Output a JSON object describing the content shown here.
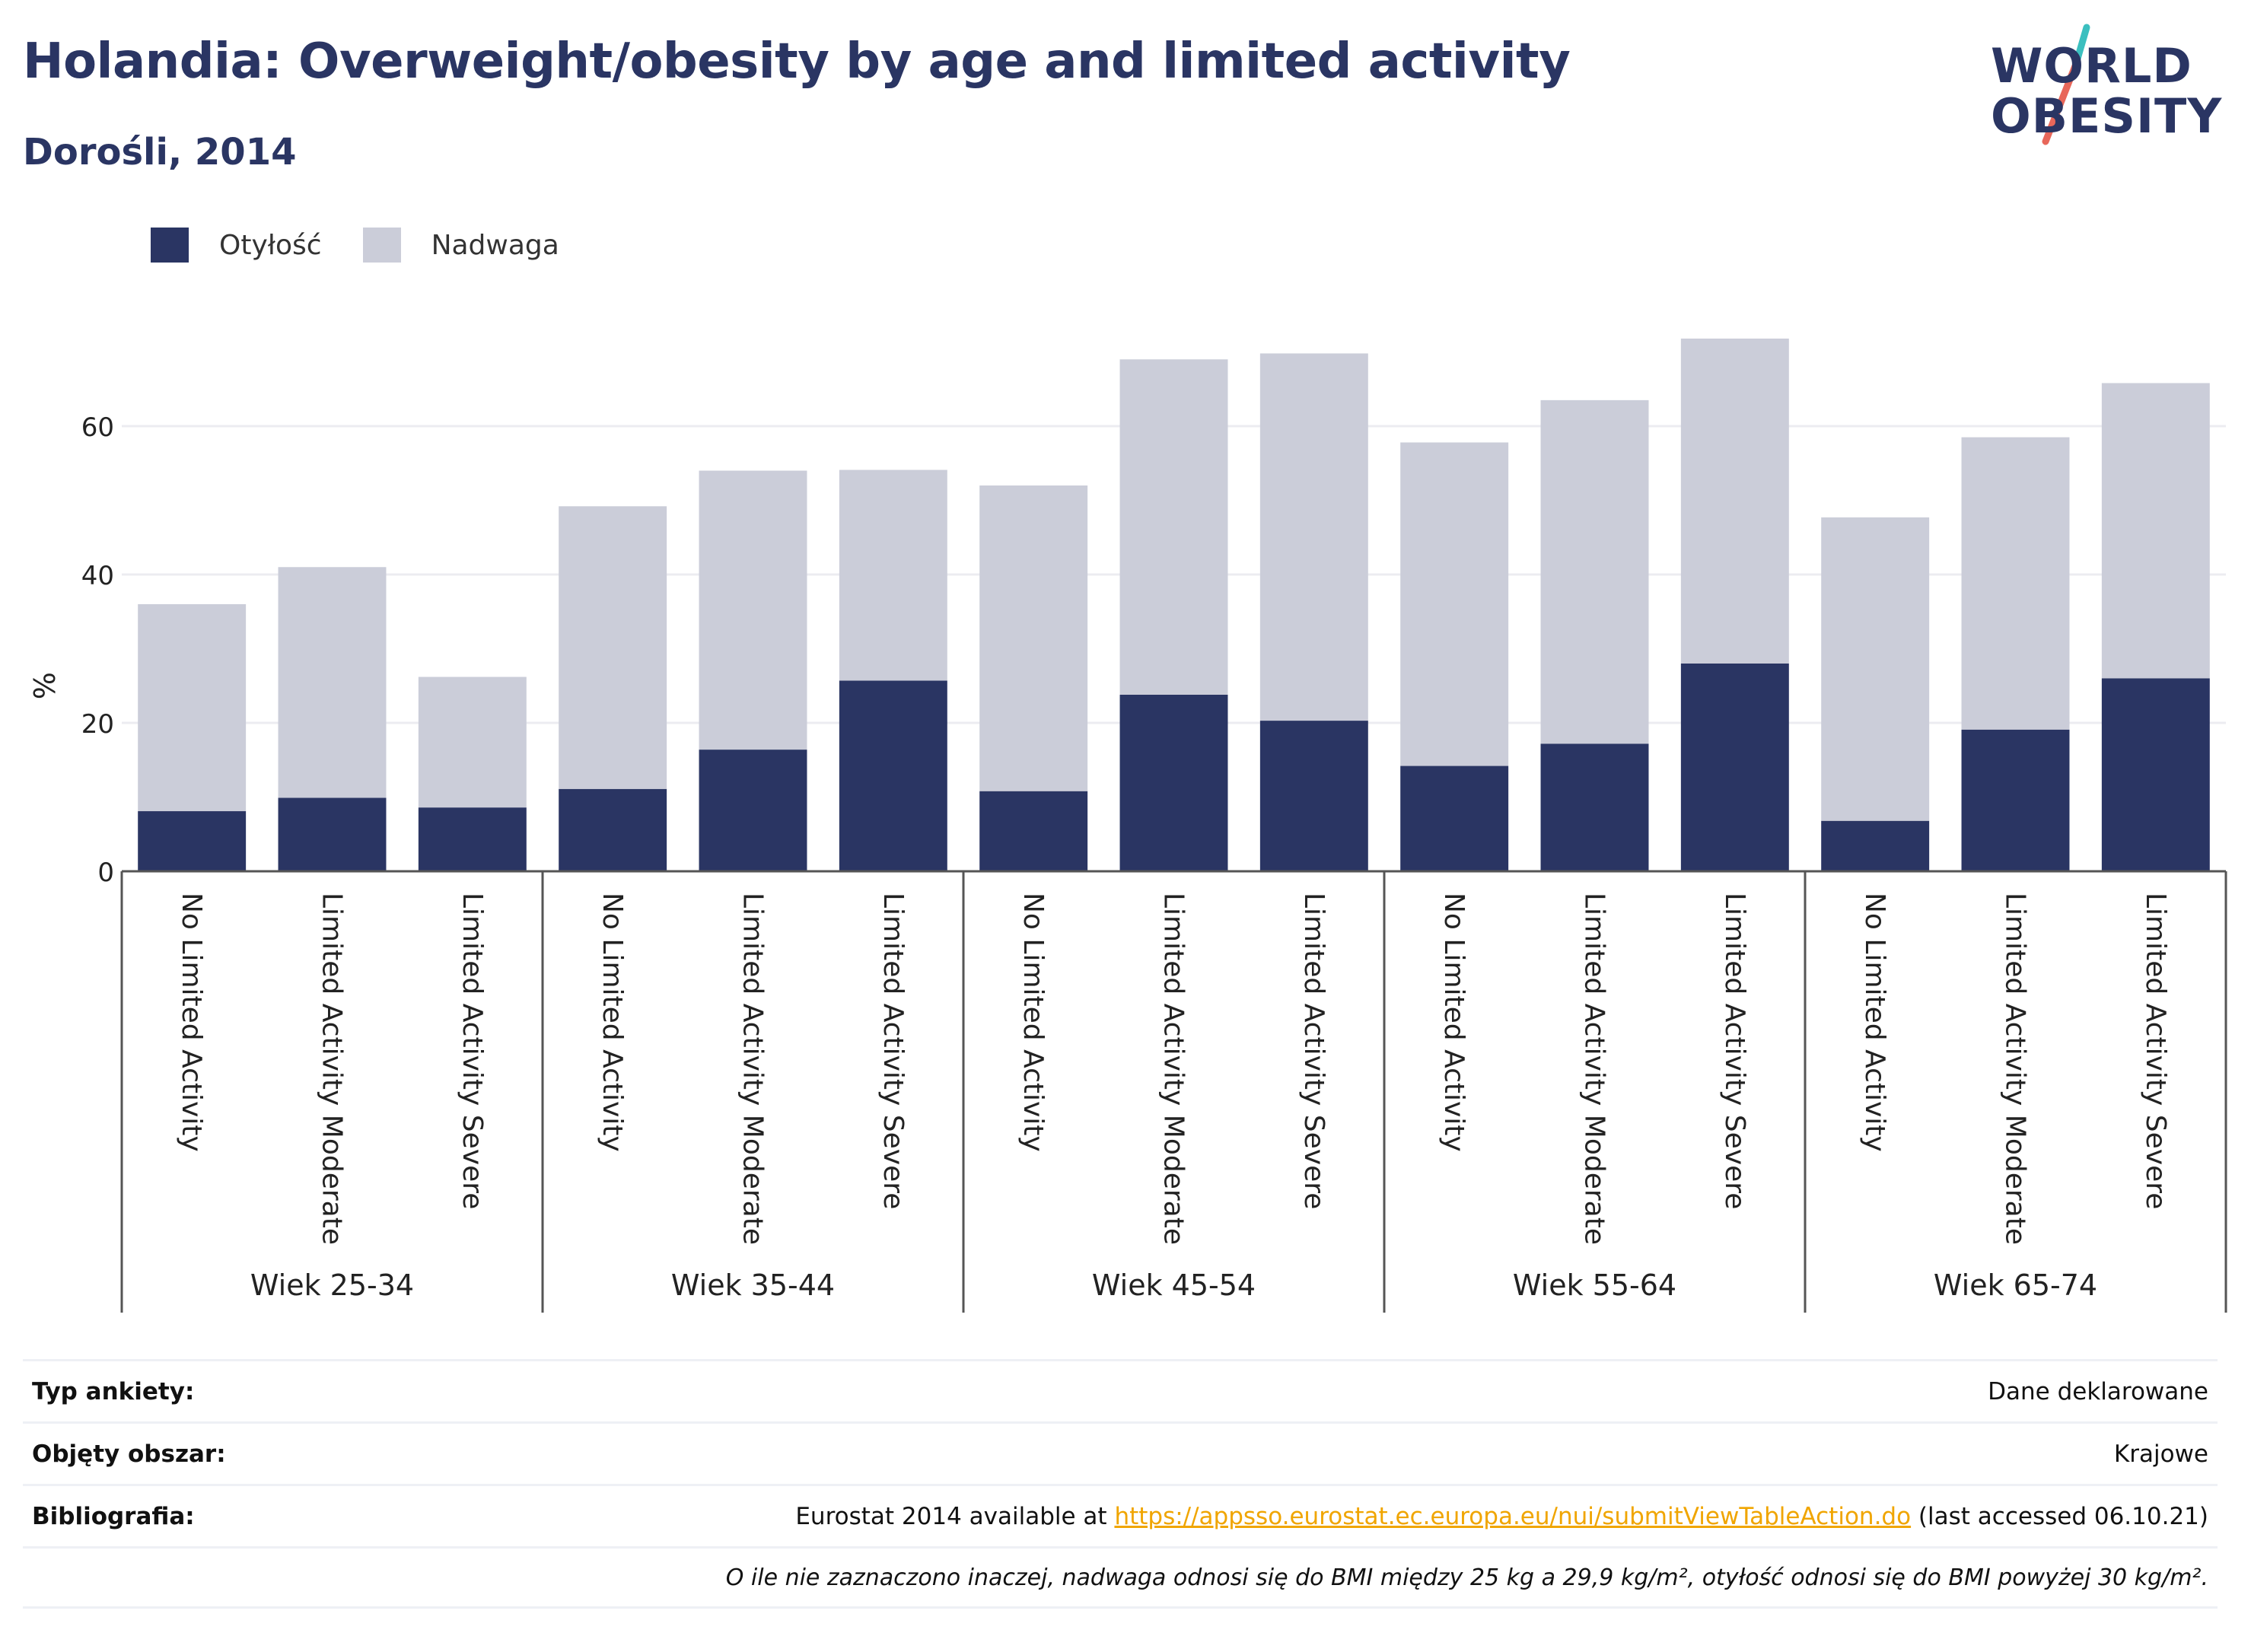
{
  "header": {
    "title": "Holandia: Overweight/obesity by age and limited activity",
    "subtitle": "Dorośli, 2014"
  },
  "logo": {
    "line1": "WORLD",
    "line2": "OBESITY",
    "accent_color": "#e8675a",
    "accent_color2": "#3bbfbf"
  },
  "legend": [
    {
      "label": "Otyłość",
      "color": "#2a3563"
    },
    {
      "label": "Nadwaga",
      "color": "#cbcdd9"
    }
  ],
  "chart_data": {
    "type": "bar",
    "stacked": true,
    "ylabel": "%",
    "ylim": [
      0,
      75
    ],
    "yticks": [
      0,
      20,
      40,
      60
    ],
    "grid": true,
    "legend_position": "top-left",
    "groups": [
      "Wiek 25-34",
      "Wiek 35-44",
      "Wiek 45-54",
      "Wiek 55-64",
      "Wiek 65-74"
    ],
    "subcategories": [
      "No Limited Activity",
      "Limited Activity Moderate",
      "Limited Activity Severe"
    ],
    "series": [
      {
        "name": "Otyłość",
        "color": "#2a3563",
        "values": [
          8.1,
          9.9,
          8.6,
          11.1,
          16.4,
          25.7,
          10.8,
          23.8,
          20.3,
          14.2,
          17.2,
          28.0,
          6.8,
          19.1,
          26.0
        ]
      },
      {
        "name": "Nadwaga",
        "color": "#cbcdd9",
        "values": [
          27.9,
          31.1,
          17.6,
          38.1,
          37.6,
          28.4,
          41.2,
          45.2,
          49.5,
          43.6,
          46.3,
          43.8,
          40.9,
          39.4,
          39.8
        ]
      }
    ],
    "totals": [
      36.0,
      41.0,
      26.2,
      49.2,
      54.0,
      54.1,
      52.0,
      69.0,
      69.8,
      57.8,
      63.5,
      71.8,
      47.7,
      58.5,
      65.8
    ]
  },
  "info": {
    "rows": [
      {
        "key": "Typ ankiety:",
        "value": "Dane deklarowane"
      },
      {
        "key": "Objęty obszar:",
        "value": "Krajowe"
      },
      {
        "key": "Bibliografia:",
        "value_prefix": "Eurostat 2014 available at ",
        "link": "https://appsso.eurostat.ec.europa.eu/nui/submitViewTableAction.do",
        "value_suffix": " (last accessed 06.10.21)"
      }
    ],
    "note": "O ile nie zaznaczono inaczej, nadwaga odnosi się do BMI między 25 kg a 29,9 kg/m², otyłość odnosi się do BMI powyżej 30 kg/m²."
  }
}
